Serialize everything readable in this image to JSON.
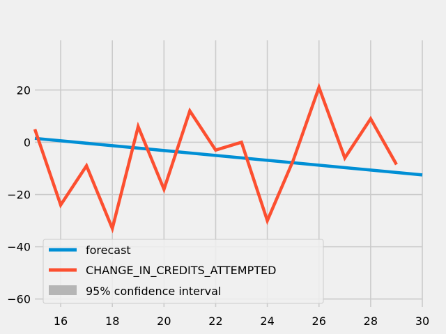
{
  "chart_data": {
    "type": "line",
    "title": "",
    "xlabel": "",
    "ylabel": "",
    "xlim": [
      15,
      30
    ],
    "ylim": [
      -63,
      39
    ],
    "xticks": [
      16,
      18,
      20,
      22,
      24,
      26,
      28,
      30
    ],
    "yticks": [
      20,
      0,
      -20,
      -40,
      -60
    ],
    "grid": true,
    "legend_position": "lower-left",
    "series": [
      {
        "name": "forecast",
        "color": "#008fd5",
        "x": [
          15,
          30
        ],
        "y": [
          1.5,
          -12.5
        ]
      },
      {
        "name": "CHANGE_IN_CREDITS_ATTEMPTED",
        "color": "#fc4f30",
        "x": [
          15,
          16,
          17,
          18,
          19,
          20,
          21,
          22,
          23,
          24,
          25,
          26,
          27,
          28,
          29
        ],
        "y": [
          5,
          -24,
          -9,
          -33,
          6,
          -18,
          12,
          -3,
          0,
          -30,
          -7,
          21,
          -6,
          9,
          -8.5
        ]
      }
    ],
    "legend": [
      {
        "label": "forecast",
        "kind": "line",
        "color": "#008fd5"
      },
      {
        "label": "CHANGE_IN_CREDITS_ATTEMPTED",
        "kind": "line",
        "color": "#fc4f30"
      },
      {
        "label": "95% confidence interval",
        "kind": "patch",
        "color": "#b5b5b5"
      }
    ]
  }
}
